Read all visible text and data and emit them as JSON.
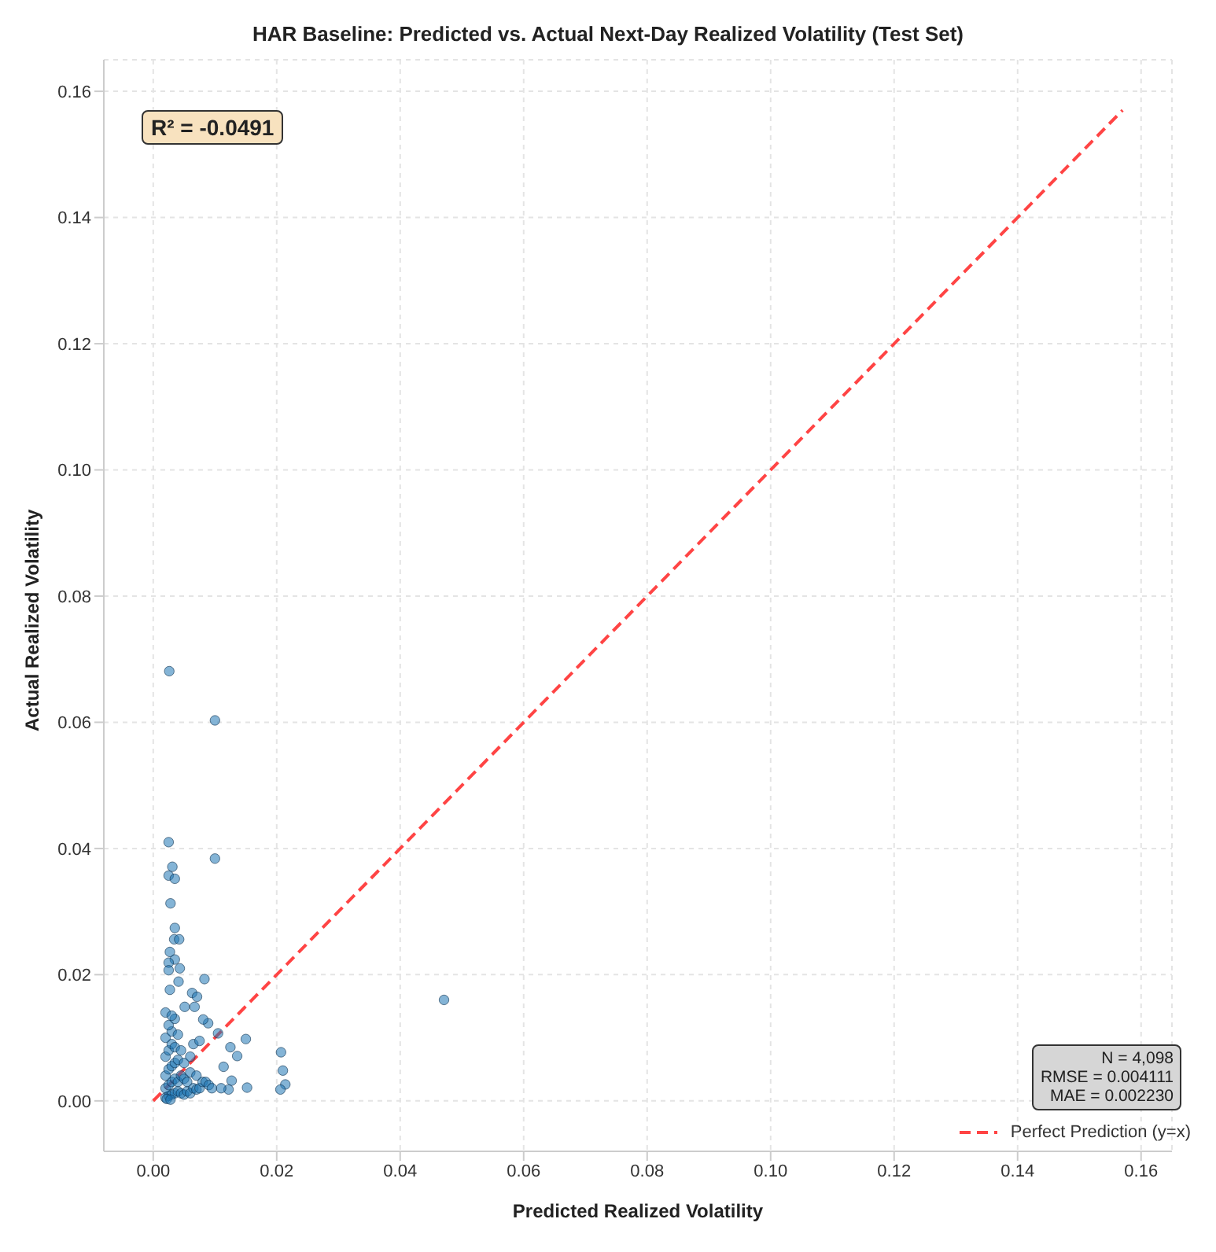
{
  "chart_data": {
    "type": "scatter",
    "title": "HAR Baseline: Predicted vs. Actual Next-Day Realized Volatility (Test Set)",
    "xlabel": "Predicted Realized Volatility",
    "ylabel": "Actual Realized Volatility",
    "xlim": [
      -0.008,
      0.165
    ],
    "ylim": [
      -0.008,
      0.165
    ],
    "xticks": [
      {
        "value": 0,
        "label": "0.00"
      },
      0.02,
      0.04,
      0.06,
      0.08,
      {
        "value": 0.1,
        "label": "0.10"
      },
      0.12,
      0.14,
      0.16
    ],
    "yticks": [
      {
        "value": 0,
        "label": "0.00"
      },
      0.02,
      0.04,
      0.06,
      0.08,
      {
        "value": 0.1,
        "label": "0.10"
      },
      0.12,
      0.14,
      0.16
    ],
    "grid": true,
    "legend": "bottom right",
    "annotations": [
      "R² = -0.0491",
      "N = 4,098\nRMSE = 0.004111\nMAE = 0.002230"
    ],
    "series": [
      {
        "marker": "circle",
        "color": "#1f77b4",
        "x": [
          0.0026,
          0.01,
          0.0025,
          0.01,
          0.0031,
          0.0025,
          0.0035,
          0.0028,
          0.0035,
          0.0034,
          0.0042,
          0.0027,
          0.0035,
          0.0025,
          0.0043,
          0.0025,
          0.0041,
          0.0083,
          0.0027,
          0.0063,
          0.0071,
          0.0051,
          0.0067,
          0.0089,
          0.0081,
          0.0105,
          0.015,
          0.0125,
          0.0136,
          0.0207,
          0.021,
          0.0214,
          0.0206,
          0.0152,
          0.0127,
          0.0122,
          0.011,
          0.0114,
          0.0471,
          0.002,
          0.0025,
          0.003,
          0.0035,
          0.004,
          0.0045,
          0.005,
          0.0055,
          0.006,
          0.0065,
          0.007,
          0.0075,
          0.002,
          0.0025,
          0.003,
          0.0035,
          0.004,
          0.0045,
          0.005,
          0.0055,
          0.006,
          0.007,
          0.008,
          0.002,
          0.0025,
          0.003,
          0.0035,
          0.004,
          0.005,
          0.006,
          0.002,
          0.0025,
          0.003,
          0.0035,
          0.0045,
          0.002,
          0.003,
          0.004,
          0.0025,
          0.0035,
          0.002,
          0.003,
          0.0022,
          0.0028,
          0.0085,
          0.009,
          0.0095,
          0.0065,
          0.0075
        ],
        "values": [
          0.0681,
          0.0603,
          0.041,
          0.0384,
          0.0371,
          0.0357,
          0.0352,
          0.0313,
          0.0274,
          0.0256,
          0.0256,
          0.0236,
          0.0224,
          0.0219,
          0.021,
          0.0207,
          0.0189,
          0.0193,
          0.0176,
          0.0171,
          0.0165,
          0.0149,
          0.0149,
          0.0123,
          0.0129,
          0.0107,
          0.0098,
          0.0085,
          0.0071,
          0.0077,
          0.0048,
          0.0026,
          0.0018,
          0.0021,
          0.0032,
          0.0018,
          0.002,
          0.0054,
          0.016,
          0.0005,
          0.0008,
          0.001,
          0.0012,
          0.0015,
          0.0012,
          0.001,
          0.0015,
          0.0012,
          0.002,
          0.0018,
          0.002,
          0.002,
          0.0025,
          0.003,
          0.0035,
          0.003,
          0.004,
          0.0035,
          0.003,
          0.0045,
          0.004,
          0.003,
          0.004,
          0.005,
          0.0055,
          0.006,
          0.0065,
          0.006,
          0.007,
          0.007,
          0.008,
          0.009,
          0.0085,
          0.008,
          0.01,
          0.011,
          0.0105,
          0.012,
          0.013,
          0.014,
          0.0135,
          0.0003,
          0.0002,
          0.003,
          0.0025,
          0.002,
          0.009,
          0.0095
        ]
      },
      {
        "type": "line",
        "name": "Perfect Prediction (y=x)",
        "color": "#ff4444",
        "line_style": "dashed",
        "marker": "none",
        "x": [
          0,
          0.157
        ],
        "values": [
          0,
          0.157
        ]
      }
    ]
  }
}
